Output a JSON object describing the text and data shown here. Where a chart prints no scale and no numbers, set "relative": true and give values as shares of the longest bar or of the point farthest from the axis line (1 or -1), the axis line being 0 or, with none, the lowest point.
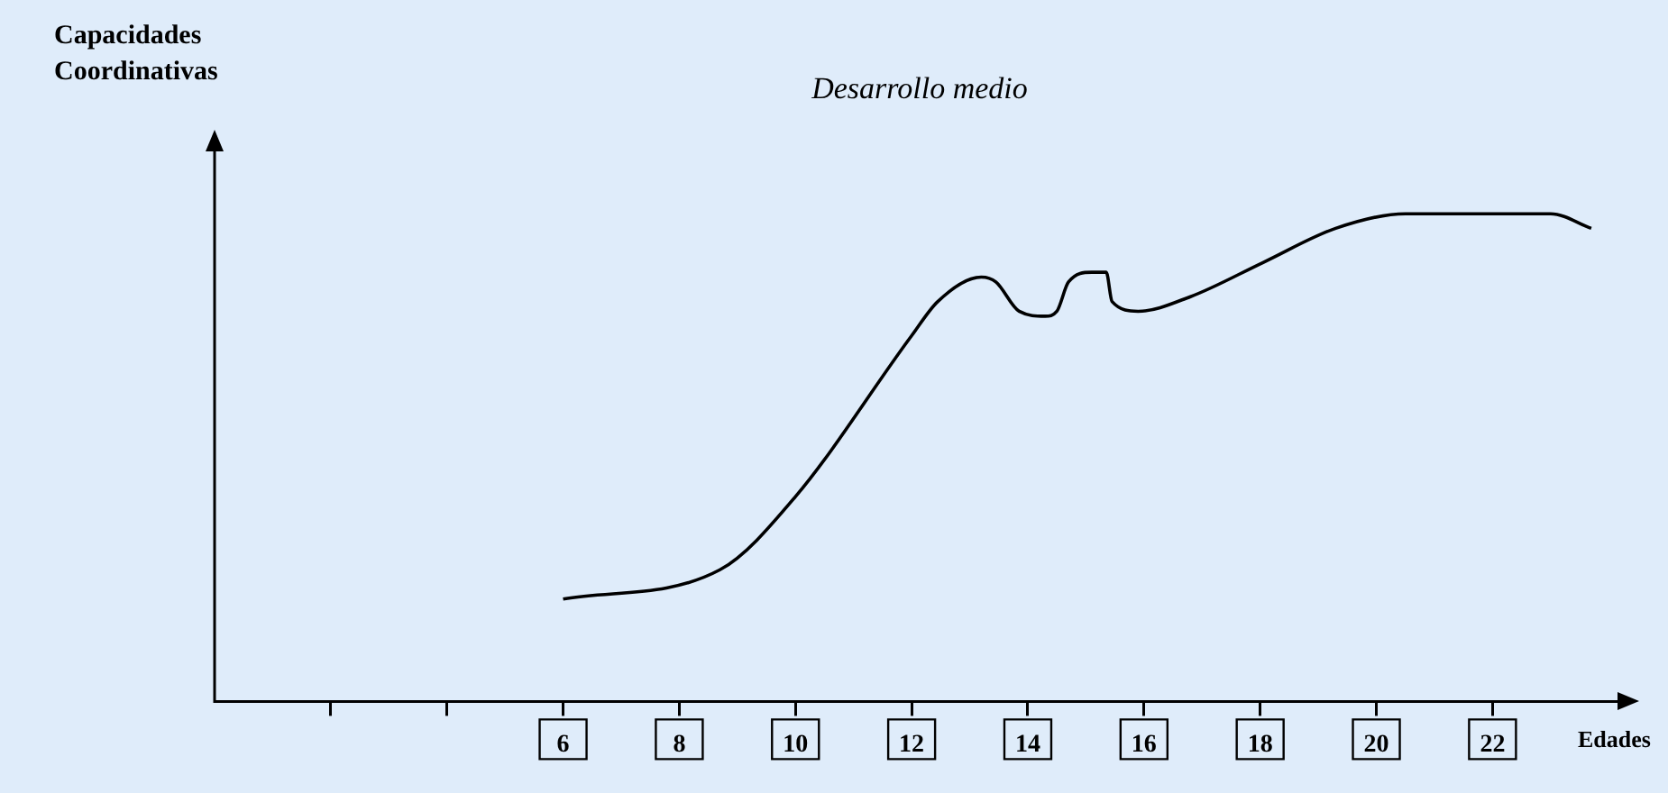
{
  "chart_data": {
    "type": "line",
    "title": "Desarrollo medio",
    "xlabel": "Edades",
    "ylabel": "Capacidades Coordinativas",
    "relative": true,
    "x": [
      6,
      8.7,
      10,
      12,
      12.45,
      13.2,
      13.45,
      13.85,
      14.3,
      14.5,
      14.7,
      15.1,
      15.35,
      15.45,
      15.9,
      16.8,
      18.05,
      19.3,
      20.5,
      23,
      23.7
    ],
    "series": [
      {
        "color": "#000000",
        "values": [
          0.21,
          0.27,
          0.42,
          0.75,
          0.82,
          0.87,
          0.86,
          0.8,
          0.79,
          0.8,
          0.86,
          0.88,
          0.88,
          0.82,
          0.8,
          0.83,
          0.9,
          0.97,
          1,
          1,
          0.97
        ]
      }
    ],
    "xlim": [
      0,
      24.4
    ],
    "xticks": [
      {
        "value": 2,
        "label": null
      },
      {
        "value": 4,
        "label": null
      },
      6,
      8,
      10,
      12,
      14,
      16,
      18,
      20,
      22
    ],
    "grid": false,
    "legend": false,
    "marker": "none",
    "line_style": "solid"
  }
}
